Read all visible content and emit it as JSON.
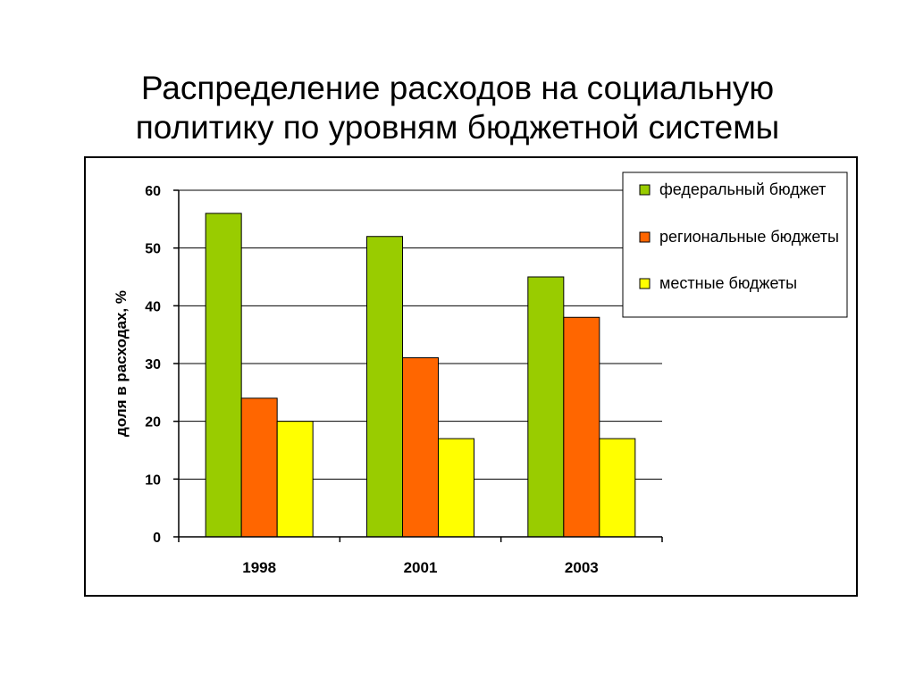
{
  "title": {
    "line1": "Распределение расходов на социальную",
    "line2": "политику по уровням бюджетной системы"
  },
  "chart_data": {
    "type": "bar",
    "title": "",
    "xlabel": "",
    "ylabel": "доля в расходах, %",
    "ylim": [
      0,
      60
    ],
    "yticks": [
      0,
      10,
      20,
      30,
      40,
      50,
      60
    ],
    "grid": true,
    "legend": "top-right",
    "categories": [
      "1998",
      "2001",
      "2003"
    ],
    "series": [
      {
        "name": "федеральный бюджет",
        "color": "#99cc00",
        "values": [
          56,
          52,
          45
        ]
      },
      {
        "name": "региональные бюджеты",
        "color": "#ff6600",
        "values": [
          24,
          31,
          38
        ]
      },
      {
        "name": "местные бюджеты",
        "color": "#ffff00",
        "values": [
          20,
          17,
          17
        ]
      }
    ]
  }
}
